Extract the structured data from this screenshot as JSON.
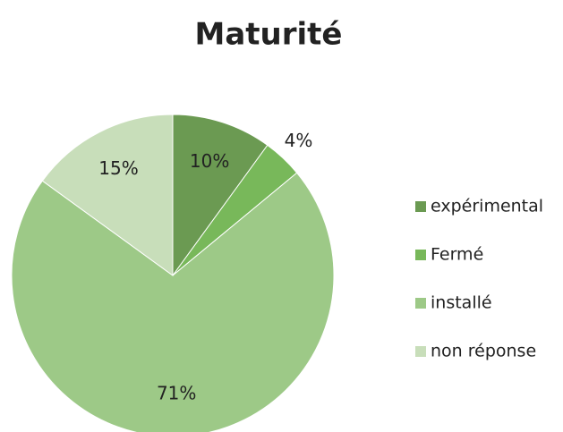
{
  "chart_data": {
    "type": "pie",
    "title": "Maturité",
    "categories": [
      "expérimental",
      "Fermé",
      "installé",
      "non réponse"
    ],
    "values": [
      10,
      4,
      71,
      15
    ],
    "value_labels": [
      "10%",
      "4%",
      "71%",
      "15%"
    ],
    "colors": [
      "#6b9a52",
      "#78b85a",
      "#9dc987",
      "#c8deba"
    ],
    "legend": "right"
  }
}
